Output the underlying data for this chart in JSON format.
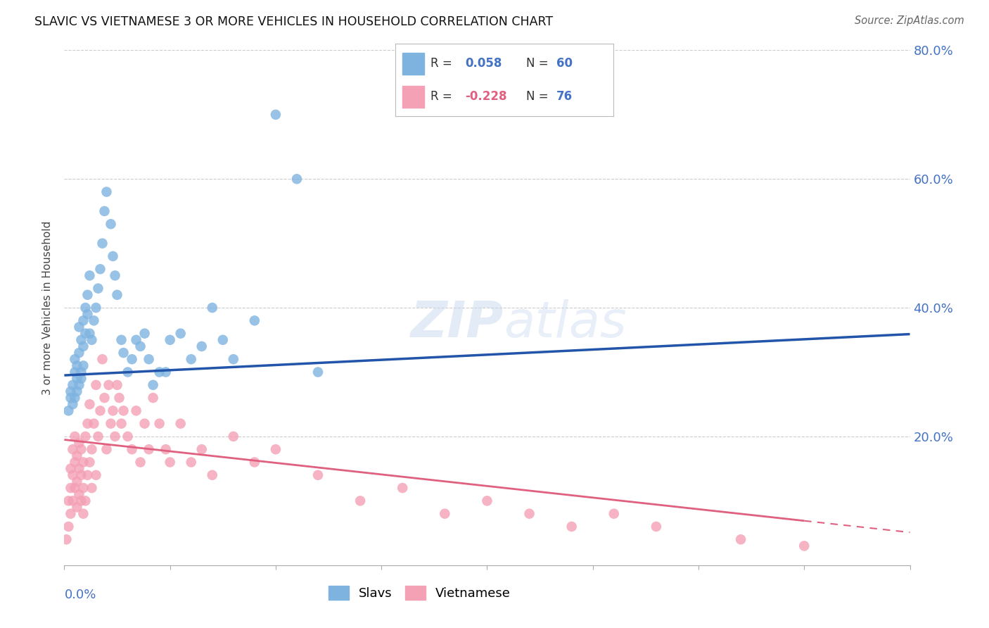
{
  "title": "SLAVIC VS VIETNAMESE 3 OR MORE VEHICLES IN HOUSEHOLD CORRELATION CHART",
  "source": "Source: ZipAtlas.com",
  "ylabel": "3 or more Vehicles in Household",
  "xmin": 0.0,
  "xmax": 0.4,
  "ymin": 0.0,
  "ymax": 0.8,
  "slavs_color": "#7eb3e0",
  "vietnamese_color": "#f4a0b5",
  "slavs_line_color": "#2255aa",
  "vietnamese_line_color": "#e06080",
  "slavs_R": 0.058,
  "slavs_N": 60,
  "vietnamese_R": -0.228,
  "vietnamese_N": 76,
  "slavs_x": [
    0.002,
    0.003,
    0.003,
    0.004,
    0.004,
    0.005,
    0.005,
    0.005,
    0.006,
    0.006,
    0.006,
    0.007,
    0.007,
    0.007,
    0.008,
    0.008,
    0.008,
    0.009,
    0.009,
    0.009,
    0.01,
    0.01,
    0.011,
    0.011,
    0.012,
    0.012,
    0.013,
    0.014,
    0.015,
    0.016,
    0.017,
    0.018,
    0.019,
    0.02,
    0.022,
    0.023,
    0.024,
    0.025,
    0.027,
    0.028,
    0.03,
    0.032,
    0.034,
    0.036,
    0.038,
    0.04,
    0.042,
    0.045,
    0.048,
    0.05,
    0.055,
    0.06,
    0.065,
    0.07,
    0.075,
    0.08,
    0.09,
    0.1,
    0.11,
    0.12
  ],
  "slavs_y": [
    0.24,
    0.26,
    0.27,
    0.25,
    0.28,
    0.26,
    0.3,
    0.32,
    0.27,
    0.29,
    0.31,
    0.28,
    0.33,
    0.37,
    0.35,
    0.3,
    0.29,
    0.31,
    0.34,
    0.38,
    0.36,
    0.4,
    0.39,
    0.42,
    0.45,
    0.36,
    0.35,
    0.38,
    0.4,
    0.43,
    0.46,
    0.5,
    0.55,
    0.58,
    0.53,
    0.48,
    0.45,
    0.42,
    0.35,
    0.33,
    0.3,
    0.32,
    0.35,
    0.34,
    0.36,
    0.32,
    0.28,
    0.3,
    0.3,
    0.35,
    0.36,
    0.32,
    0.34,
    0.4,
    0.35,
    0.32,
    0.38,
    0.7,
    0.6,
    0.3
  ],
  "vietnamese_x": [
    0.001,
    0.002,
    0.002,
    0.003,
    0.003,
    0.003,
    0.004,
    0.004,
    0.004,
    0.005,
    0.005,
    0.005,
    0.006,
    0.006,
    0.006,
    0.007,
    0.007,
    0.007,
    0.008,
    0.008,
    0.008,
    0.009,
    0.009,
    0.009,
    0.01,
    0.01,
    0.011,
    0.011,
    0.012,
    0.012,
    0.013,
    0.013,
    0.014,
    0.015,
    0.015,
    0.016,
    0.017,
    0.018,
    0.019,
    0.02,
    0.021,
    0.022,
    0.023,
    0.024,
    0.025,
    0.026,
    0.027,
    0.028,
    0.03,
    0.032,
    0.034,
    0.036,
    0.038,
    0.04,
    0.042,
    0.045,
    0.048,
    0.05,
    0.055,
    0.06,
    0.065,
    0.07,
    0.08,
    0.09,
    0.1,
    0.12,
    0.14,
    0.16,
    0.18,
    0.2,
    0.22,
    0.24,
    0.26,
    0.28,
    0.32,
    0.35
  ],
  "vietnamese_y": [
    0.04,
    0.06,
    0.1,
    0.08,
    0.12,
    0.15,
    0.1,
    0.14,
    0.18,
    0.12,
    0.16,
    0.2,
    0.09,
    0.13,
    0.17,
    0.11,
    0.15,
    0.19,
    0.1,
    0.14,
    0.18,
    0.08,
    0.12,
    0.16,
    0.1,
    0.2,
    0.14,
    0.22,
    0.16,
    0.25,
    0.12,
    0.18,
    0.22,
    0.14,
    0.28,
    0.2,
    0.24,
    0.32,
    0.26,
    0.18,
    0.28,
    0.22,
    0.24,
    0.2,
    0.28,
    0.26,
    0.22,
    0.24,
    0.2,
    0.18,
    0.24,
    0.16,
    0.22,
    0.18,
    0.26,
    0.22,
    0.18,
    0.16,
    0.22,
    0.16,
    0.18,
    0.14,
    0.2,
    0.16,
    0.18,
    0.14,
    0.1,
    0.12,
    0.08,
    0.1,
    0.08,
    0.06,
    0.08,
    0.06,
    0.04,
    0.03
  ]
}
